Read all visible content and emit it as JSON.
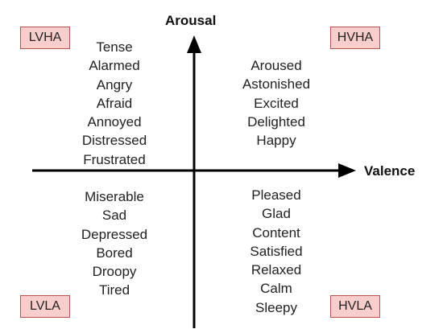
{
  "axes": {
    "y_label": "Arousal",
    "x_label": "Valence"
  },
  "quadrant_tags": {
    "top_left": "LVHA",
    "top_right": "HVHA",
    "bottom_left": "LVLA",
    "bottom_right": "HVLA"
  },
  "quadrants": {
    "top_left": [
      "Tense",
      "Alarmed",
      "Angry",
      "Afraid",
      "Annoyed",
      "Distressed",
      "Frustrated"
    ],
    "top_right": [
      "Aroused",
      "Astonished",
      "Excited",
      "Delighted",
      "Happy"
    ],
    "bottom_left": [
      "Miserable",
      "Sad",
      "Depressed",
      "Bored",
      "Droopy",
      "Tired"
    ],
    "bottom_right": [
      "Pleased",
      "Glad",
      "Content",
      "Satisfied",
      "Relaxed",
      "Calm",
      "Sleepy"
    ]
  },
  "colors": {
    "tag_fill": "#f8cecc",
    "tag_border": "#b85450",
    "axis": "#000000"
  }
}
